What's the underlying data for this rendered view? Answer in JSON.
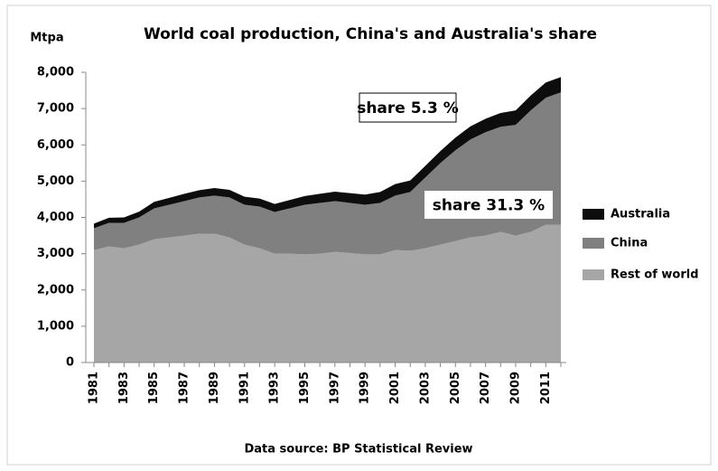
{
  "chart_data": {
    "type": "stacked_area",
    "title": "World coal production, China's and Australia's share",
    "y_label": "Mtpa",
    "source": "Data source: BP Statistical Review",
    "annotations": [
      "share  5.3 %",
      "share 31.3 %"
    ],
    "categories": [
      "1981",
      null,
      "1983",
      null,
      "1985",
      null,
      "1987",
      null,
      "1989",
      null,
      "1991",
      null,
      "1993",
      null,
      "1995",
      null,
      "1997",
      null,
      "1999",
      null,
      "2001",
      null,
      "2003",
      null,
      "2005",
      null,
      "2007",
      null,
      "2009",
      null,
      "2011",
      null
    ],
    "series": [
      {
        "name": "Rest of world",
        "color": "#a6a6a6",
        "values": [
          3100,
          3200,
          3150,
          3250,
          3400,
          3450,
          3500,
          3550,
          3550,
          3450,
          3250,
          3150,
          3000,
          3000,
          2980,
          3000,
          3050,
          3020,
          2980,
          2980,
          3100,
          3080,
          3150,
          3250,
          3350,
          3450,
          3500,
          3600,
          3500,
          3600,
          3800,
          3800
        ]
      },
      {
        "name": "China",
        "color": "#808080",
        "values": [
          600,
          650,
          700,
          750,
          850,
          900,
          950,
          1000,
          1050,
          1100,
          1100,
          1150,
          1150,
          1250,
          1370,
          1400,
          1400,
          1380,
          1370,
          1420,
          1500,
          1620,
          1950,
          2250,
          2500,
          2700,
          2850,
          2900,
          3050,
          3350,
          3500,
          3650
        ]
      },
      {
        "name": "Australia",
        "color": "#0d0d0d",
        "values": [
          130,
          140,
          150,
          160,
          180,
          190,
          200,
          200,
          210,
          210,
          220,
          220,
          220,
          230,
          240,
          250,
          260,
          270,
          280,
          300,
          320,
          320,
          320,
          330,
          350,
          360,
          370,
          380,
          400,
          410,
          420,
          420
        ]
      }
    ],
    "ylim": [
      0,
      8000
    ],
    "yticks": [
      0,
      {
        "value": 1000,
        "label": "1,000"
      },
      {
        "value": 2000,
        "label": "2,000"
      },
      {
        "value": 3000,
        "label": "3,000"
      },
      {
        "value": 4000,
        "label": "4,000"
      },
      {
        "value": 5000,
        "label": "5,000"
      },
      {
        "value": 6000,
        "label": "6,000"
      },
      {
        "value": 7000,
        "label": "7,000"
      },
      {
        "value": 8000,
        "label": "8,000"
      }
    ],
    "grid": false,
    "legend": "right"
  }
}
